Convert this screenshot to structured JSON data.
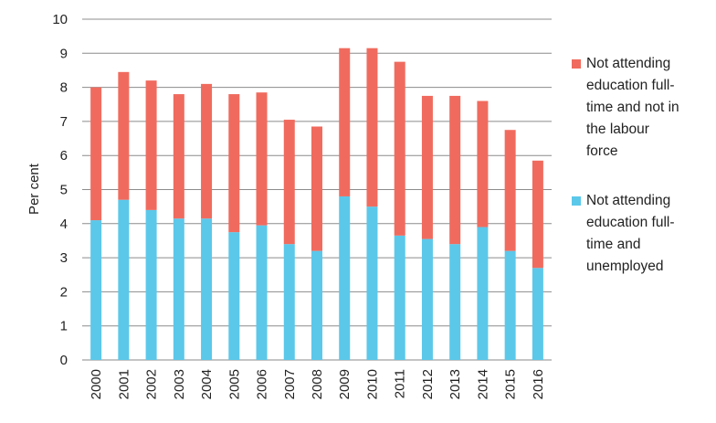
{
  "chart_data": {
    "type": "bar",
    "stacked": true,
    "categories": [
      "2000",
      "2001",
      "2002",
      "2003",
      "2004",
      "2005",
      "2006",
      "2007",
      "2008",
      "2009",
      "2010",
      "2011",
      "2012",
      "2013",
      "2014",
      "2015",
      "2016"
    ],
    "series": [
      {
        "name": "Not attending education full-time and unemployed",
        "color": "#5bc8ea",
        "values": [
          4.1,
          4.7,
          4.4,
          4.15,
          4.15,
          3.75,
          3.95,
          3.4,
          3.2,
          4.8,
          4.5,
          3.65,
          3.55,
          3.4,
          3.9,
          3.2,
          2.7
        ]
      },
      {
        "name": "Not attending education full-time and not in the labour force",
        "color": "#f06b5e",
        "values": [
          3.9,
          3.75,
          3.8,
          3.65,
          3.95,
          4.05,
          3.9,
          3.65,
          3.65,
          4.35,
          4.65,
          5.1,
          4.2,
          4.35,
          3.7,
          3.55,
          3.15
        ]
      }
    ],
    "ylabel": "Per cent",
    "xlabel": "",
    "ylim": [
      0,
      10
    ],
    "yticks": [
      "0",
      "1",
      "2",
      "3",
      "4",
      "5",
      "6",
      "7",
      "8",
      "9",
      "10"
    ],
    "grid": true,
    "legend_position": "right",
    "legend": [
      {
        "lines": [
          "Not attending",
          "education full-",
          "time and not in",
          "the labour",
          "force"
        ],
        "color": "#f06b5e"
      },
      {
        "lines": [
          "Not attending",
          "education full-",
          "time and",
          "unemployed"
        ],
        "color": "#5bc8ea"
      }
    ]
  }
}
